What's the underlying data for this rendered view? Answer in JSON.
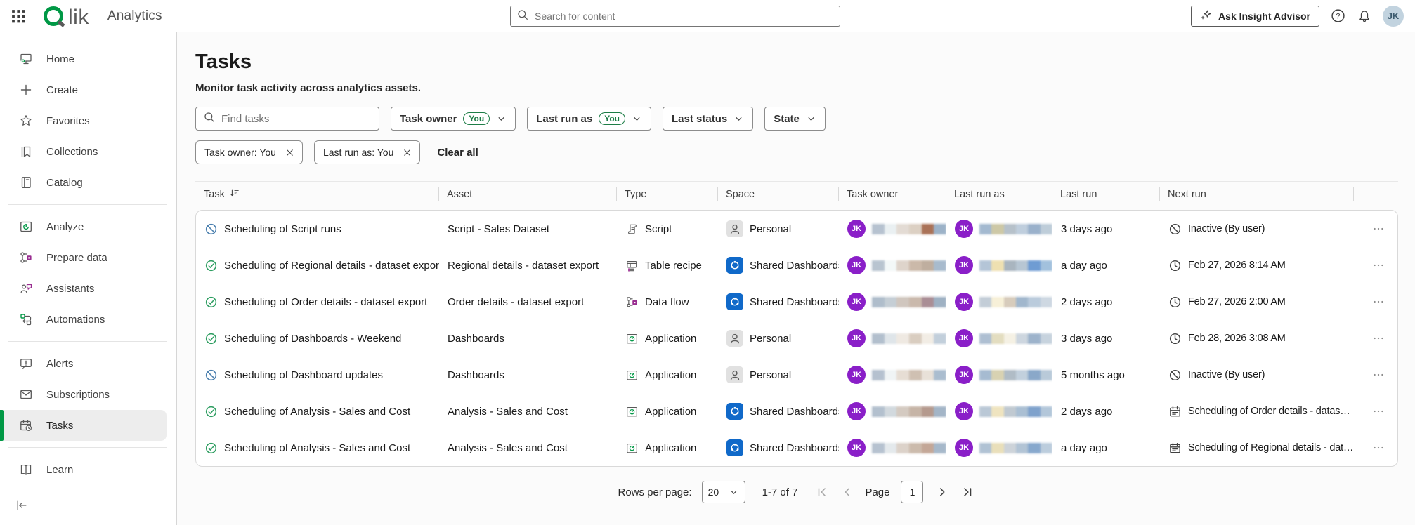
{
  "topbar": {
    "brand": "Qlik",
    "logo_lik": "lik",
    "product": "Analytics",
    "search_placeholder": "Search for content",
    "advisor_label": "Ask Insight Advisor",
    "avatar_initials": "JK"
  },
  "sidebar": {
    "items": [
      {
        "label": "Home",
        "icon": "home"
      },
      {
        "label": "Create",
        "icon": "plus"
      },
      {
        "label": "Favorites",
        "icon": "star"
      },
      {
        "label": "Collections",
        "icon": "bookmark"
      },
      {
        "label": "Catalog",
        "icon": "catalog"
      },
      {
        "label": "Analyze",
        "icon": "analyze"
      },
      {
        "label": "Prepare data",
        "icon": "prepare"
      },
      {
        "label": "Assistants",
        "icon": "assistants"
      },
      {
        "label": "Automations",
        "icon": "automations"
      },
      {
        "label": "Alerts",
        "icon": "alerts"
      },
      {
        "label": "Subscriptions",
        "icon": "subscriptions"
      },
      {
        "label": "Tasks",
        "icon": "tasks",
        "active": true
      },
      {
        "label": "Learn",
        "icon": "learn"
      }
    ]
  },
  "page": {
    "title": "Tasks",
    "subtitle": "Monitor task activity across analytics assets.",
    "find_placeholder": "Find tasks",
    "filters": [
      {
        "label": "Task owner",
        "badge": "You"
      },
      {
        "label": "Last run as",
        "badge": "You"
      },
      {
        "label": "Last status"
      },
      {
        "label": "State"
      }
    ],
    "chips": [
      {
        "label": "Task owner: You"
      },
      {
        "label": "Last run as: You"
      }
    ],
    "clear_all": "Clear all"
  },
  "table": {
    "avatar_initials": "JK",
    "headers": {
      "task": "Task",
      "asset": "Asset",
      "type": "Type",
      "space": "Space",
      "task_owner": "Task owner",
      "last_run_as": "Last run as",
      "last_run": "Last run",
      "next_run": "Next run"
    },
    "rows": [
      {
        "status_icon": "ban-blue",
        "task": "Scheduling of Script runs",
        "asset": "Script - Sales Dataset",
        "type": "Script",
        "type_icon": "script",
        "space": "Personal",
        "space_icon": "sp-personal",
        "last_run": "3 days ago",
        "next_run": "Inactive (By user)",
        "next_icon": "ban-gray",
        "owner_strip": [
          "#b6c2d0",
          "#eaf0f2",
          "#e3dbd4",
          "#dcd0c3",
          "#aa7257",
          "#9cb2c8"
        ],
        "runas_strip": [
          "#a3b9d0",
          "#cdc8a6",
          "#b6c1ca",
          "#bfcedd",
          "#9ab1cb",
          "#becdd9"
        ]
      },
      {
        "status_icon": "check-green",
        "task": "Scheduling of Regional details - dataset export",
        "asset": "Regional details - dataset export",
        "type": "Table recipe",
        "type_icon": "recipe",
        "space": "Shared Dashboards",
        "space_icon": "sp-shared",
        "last_run": "a day ago",
        "next_run": "Feb 27, 2026 8:14 AM",
        "next_icon": "clock",
        "owner_strip": [
          "#b8c4d0",
          "#f3f8f8",
          "#ded4cb",
          "#cbb9a9",
          "#bfae9f",
          "#a8bbcd"
        ],
        "runas_strip": [
          "#b4c5d7",
          "#eee0b1",
          "#a9b5bf",
          "#b7c6d3",
          "#6f9cd3",
          "#a2c1dd"
        ]
      },
      {
        "status_icon": "check-green",
        "task": "Scheduling of Order details - dataset export",
        "asset": "Order details - dataset export",
        "type": "Data flow",
        "type_icon": "flow",
        "space": "Shared Dashboards",
        "space_icon": "sp-shared",
        "last_run": "2 days ago",
        "next_run": "Feb 27, 2026 2:00 AM",
        "next_icon": "clock",
        "owner_strip": [
          "#afbdcb",
          "#c5ced5",
          "#d0c6be",
          "#cab9ac",
          "#aa8e95",
          "#9eb1c3"
        ],
        "runas_strip": [
          "#c3cdd7",
          "#f7f0d8",
          "#d7ccbc",
          "#a1b7cd",
          "#bacbdc",
          "#ced8e2"
        ]
      },
      {
        "status_icon": "check-green",
        "task": "Scheduling of Dashboards - Weekend",
        "asset": "Dashboards",
        "type": "Application",
        "type_icon": "app",
        "space": "Personal",
        "space_icon": "sp-personal",
        "last_run": "3 days ago",
        "next_run": "Feb 28, 2026 3:08 AM",
        "next_icon": "clock",
        "owner_strip": [
          "#b2bfcd",
          "#dfe5e9",
          "#efe9e2",
          "#d9cdc0",
          "#f2ede5",
          "#c2cfdb"
        ],
        "runas_strip": [
          "#aebfd2",
          "#e3ddc0",
          "#f5f1e4",
          "#cdd6df",
          "#9db3cb",
          "#c7d3de"
        ]
      },
      {
        "status_icon": "ban-blue",
        "task": "Scheduling of Dashboard updates",
        "asset": "Dashboards",
        "type": "Application",
        "type_icon": "app",
        "space": "Personal",
        "space_icon": "sp-personal",
        "last_run": "5 months ago",
        "next_run": "Inactive (By user)",
        "next_icon": "ban-gray",
        "owner_strip": [
          "#b5c1cf",
          "#f0f4f5",
          "#e6ddd4",
          "#cfc0b2",
          "#e8e1d8",
          "#aabdcf"
        ],
        "runas_strip": [
          "#a6bbd1",
          "#d8d2b2",
          "#b0bcc6",
          "#c2d0dd",
          "#8aa8c9",
          "#b9cad9"
        ]
      },
      {
        "status_icon": "check-green",
        "task": "Scheduling of Analysis - Sales and Cost",
        "asset": "Analysis - Sales and Cost",
        "type": "Application",
        "type_icon": "app",
        "space": "Shared Dashboards",
        "space_icon": "sp-shared",
        "last_run": "2 days ago",
        "next_run": "Scheduling of Order details - dataset export",
        "next_icon": "calendar",
        "owner_strip": [
          "#b3c0ce",
          "#d2d9de",
          "#d4cac1",
          "#c6b4a6",
          "#b59a8e",
          "#a3b5c7"
        ],
        "runas_strip": [
          "#bac8d6",
          "#efe4c0",
          "#c0c9d1",
          "#aabfd3",
          "#7fa2cc",
          "#b3c7da"
        ]
      },
      {
        "status_icon": "check-green",
        "task": "Scheduling of Analysis - Sales and Cost",
        "asset": "Analysis - Sales and Cost",
        "type": "Application",
        "type_icon": "app",
        "space": "Shared Dashboards",
        "space_icon": "sp-shared",
        "last_run": "a day ago",
        "next_run": "Scheduling of Regional details - dataset export",
        "next_icon": "calendar",
        "owner_strip": [
          "#b6c2d0",
          "#e4e9ec",
          "#dcd2c9",
          "#ccbbac",
          "#c4a797",
          "#a6b8ca"
        ],
        "runas_strip": [
          "#b0c2d4",
          "#e9dfba",
          "#cdd3d9",
          "#b2c4d5",
          "#87a8cd",
          "#bccddd"
        ]
      }
    ]
  },
  "pagination": {
    "rows_per_page_label": "Rows per page:",
    "rows_per_page_value": "20",
    "range": "1-7 of 7",
    "page_label": "Page",
    "page_value": "1"
  },
  "colors": {
    "brand_green": "#009845",
    "shared_space_blue": "#1069c9",
    "avatar_purple": "#8a1fc8",
    "status_success_green": "#2f9e62",
    "status_inactive_blue": "#4a7fae",
    "accent_magenta": "#992d90"
  }
}
